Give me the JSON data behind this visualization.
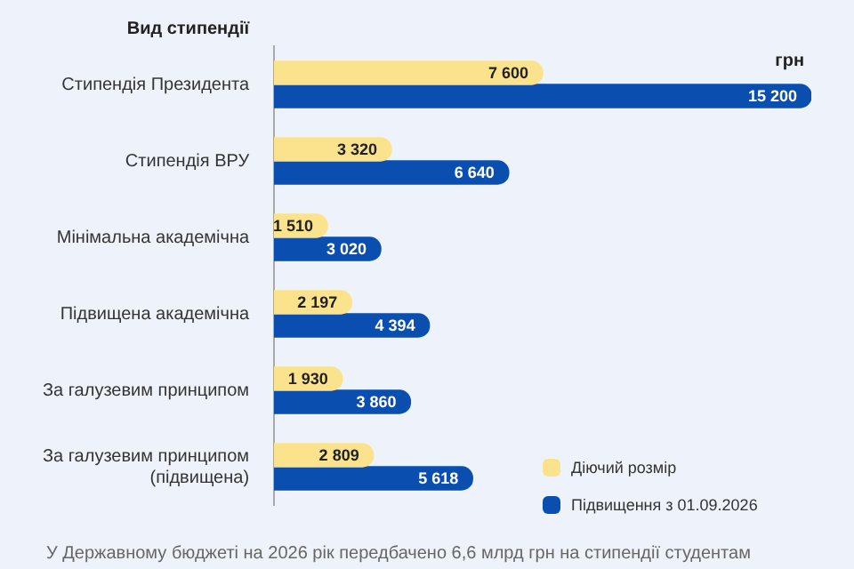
{
  "chart_data": {
    "type": "bar",
    "orientation": "horizontal",
    "ylabel": "Вид стипендії",
    "xlabel": "грн",
    "categories": [
      "Стипендія Президента",
      "Стипендія ВРУ",
      "Мінімальна академічна",
      "Підвищена академічна",
      "За галузевим принципом",
      "За галузевим принципом (підвищена)"
    ],
    "series": [
      {
        "name": "Діючий розмір",
        "color": "#fbe38e",
        "values": [
          7600,
          3320,
          1510,
          2197,
          1930,
          2809
        ],
        "value_labels": [
          "7 600",
          "3 320",
          "1 510",
          "2 197",
          "1 930",
          "2 809"
        ]
      },
      {
        "name": "Підвищення з 01.09.2026",
        "color": "#0a4fb0",
        "values": [
          15200,
          6640,
          3020,
          4394,
          3860,
          5618
        ],
        "value_labels": [
          "15 200",
          "6 640",
          "3 020",
          "4 394",
          "3 860",
          "5 618"
        ]
      }
    ],
    "legend": "bottom right",
    "grid": false,
    "annotations": [
      "У Державному бюджеті на 2026 рік передбачено 6,6 млрд грн на стипендії студентам"
    ]
  }
}
